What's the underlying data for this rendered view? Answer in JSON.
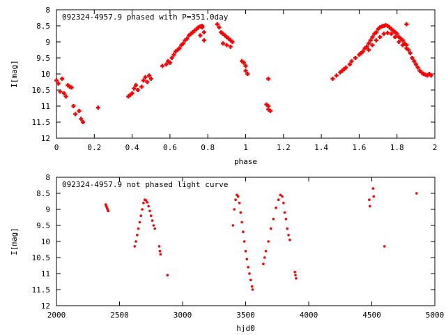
{
  "chart_data": [
    {
      "type": "scatter",
      "title": "092324-4957.9 phased with P=351.0day",
      "xlabel": "phase",
      "ylabel": "I[mag]",
      "xlim": [
        0,
        2
      ],
      "ylim": [
        8,
        12
      ],
      "y_inverted": true,
      "xticks": [
        "0",
        "0.2",
        "0.4",
        "0.6",
        "0.8",
        "1",
        "1.2",
        "1.4",
        "1.6",
        "1.8",
        "2"
      ],
      "yticks": [
        "8",
        "8.5",
        "9",
        "9.5",
        "10",
        "10.5",
        "11",
        "11.5",
        "12"
      ],
      "marker": "plus",
      "color": "#ff0000",
      "points": [
        [
          0.0,
          10.2
        ],
        [
          0.01,
          10.3
        ],
        [
          0.02,
          10.55
        ],
        [
          0.03,
          10.15
        ],
        [
          0.04,
          10.6
        ],
        [
          0.05,
          10.7
        ],
        [
          0.06,
          10.35
        ],
        [
          0.07,
          10.4
        ],
        [
          0.08,
          10.42
        ],
        [
          0.09,
          11.0
        ],
        [
          0.1,
          11.25
        ],
        [
          0.12,
          11.15
        ],
        [
          0.13,
          11.4
        ],
        [
          0.14,
          11.5
        ],
        [
          0.22,
          11.05
        ],
        [
          0.38,
          10.7
        ],
        [
          0.39,
          10.65
        ],
        [
          0.4,
          10.6
        ],
        [
          0.41,
          10.45
        ],
        [
          0.42,
          10.35
        ],
        [
          0.43,
          10.5
        ],
        [
          0.45,
          10.4
        ],
        [
          0.46,
          10.2
        ],
        [
          0.47,
          10.1
        ],
        [
          0.48,
          10.25
        ],
        [
          0.49,
          10.05
        ],
        [
          0.5,
          10.15
        ],
        [
          0.56,
          9.75
        ],
        [
          0.58,
          9.7
        ],
        [
          0.59,
          9.6
        ],
        [
          0.6,
          9.65
        ],
        [
          0.61,
          9.5
        ],
        [
          0.62,
          9.4
        ],
        [
          0.63,
          9.3
        ],
        [
          0.64,
          9.25
        ],
        [
          0.65,
          9.2
        ],
        [
          0.66,
          9.1
        ],
        [
          0.67,
          9.05
        ],
        [
          0.68,
          8.95
        ],
        [
          0.69,
          8.9
        ],
        [
          0.7,
          8.8
        ],
        [
          0.71,
          8.75
        ],
        [
          0.72,
          8.7
        ],
        [
          0.73,
          8.65
        ],
        [
          0.74,
          8.6
        ],
        [
          0.75,
          8.55
        ],
        [
          0.76,
          8.52
        ],
        [
          0.77,
          8.55
        ],
        [
          0.77,
          8.5
        ],
        [
          0.76,
          8.8
        ],
        [
          0.78,
          8.7
        ],
        [
          0.78,
          8.95
        ],
        [
          0.85,
          8.45
        ],
        [
          0.86,
          8.55
        ],
        [
          0.87,
          8.7
        ],
        [
          0.88,
          8.75
        ],
        [
          0.89,
          8.8
        ],
        [
          0.9,
          8.85
        ],
        [
          0.91,
          8.9
        ],
        [
          0.92,
          8.95
        ],
        [
          0.93,
          9.0
        ],
        [
          0.88,
          9.05
        ],
        [
          0.9,
          9.1
        ],
        [
          0.92,
          9.15
        ],
        [
          0.98,
          9.6
        ],
        [
          0.99,
          9.65
        ],
        [
          1.0,
          9.75
        ],
        [
          1.0,
          9.9
        ],
        [
          1.01,
          10.0
        ],
        [
          1.12,
          10.15
        ],
        [
          1.11,
          10.95
        ],
        [
          1.12,
          11.0
        ],
        [
          1.12,
          11.1
        ],
        [
          1.13,
          11.15
        ],
        [
          1.46,
          10.15
        ],
        [
          1.48,
          10.05
        ],
        [
          1.5,
          9.95
        ],
        [
          1.51,
          9.9
        ],
        [
          1.52,
          9.85
        ],
        [
          1.53,
          9.8
        ],
        [
          1.55,
          9.7
        ],
        [
          1.56,
          9.6
        ],
        [
          1.58,
          9.5
        ],
        [
          1.6,
          9.4
        ],
        [
          1.61,
          9.35
        ],
        [
          1.62,
          9.3
        ],
        [
          1.63,
          9.2
        ],
        [
          1.64,
          9.15
        ],
        [
          1.65,
          9.05
        ],
        [
          1.66,
          8.95
        ],
        [
          1.67,
          8.85
        ],
        [
          1.68,
          8.75
        ],
        [
          1.69,
          8.7
        ],
        [
          1.7,
          8.6
        ],
        [
          1.71,
          8.55
        ],
        [
          1.72,
          8.52
        ],
        [
          1.73,
          8.5
        ],
        [
          1.74,
          8.48
        ],
        [
          1.75,
          8.5
        ],
        [
          1.76,
          8.55
        ],
        [
          1.77,
          8.6
        ],
        [
          1.78,
          8.65
        ],
        [
          1.79,
          8.7
        ],
        [
          1.8,
          8.75
        ],
        [
          1.81,
          8.85
        ],
        [
          1.82,
          8.9
        ],
        [
          1.65,
          9.25
        ],
        [
          1.67,
          9.1
        ],
        [
          1.69,
          8.95
        ],
        [
          1.71,
          8.85
        ],
        [
          1.73,
          8.75
        ],
        [
          1.75,
          8.72
        ],
        [
          1.77,
          8.75
        ],
        [
          1.79,
          8.85
        ],
        [
          1.81,
          9.0
        ],
        [
          1.83,
          9.1
        ],
        [
          1.85,
          9.2
        ],
        [
          1.83,
          8.95
        ],
        [
          1.84,
          9.05
        ],
        [
          1.85,
          9.1
        ],
        [
          1.86,
          9.25
        ],
        [
          1.87,
          9.35
        ],
        [
          1.88,
          9.5
        ],
        [
          1.89,
          9.6
        ],
        [
          1.9,
          9.7
        ],
        [
          1.91,
          9.8
        ],
        [
          1.92,
          9.9
        ],
        [
          1.93,
          9.95
        ],
        [
          1.94,
          10.0
        ],
        [
          1.95,
          10.02
        ],
        [
          1.96,
          10.05
        ],
        [
          1.97,
          10.0
        ],
        [
          1.98,
          10.05
        ],
        [
          1.85,
          8.45
        ]
      ]
    },
    {
      "type": "scatter",
      "title": "092324-4957.9 not phased light curve",
      "xlabel": "hjd0",
      "ylabel": "I[mag]",
      "xlim": [
        2000,
        5000
      ],
      "ylim": [
        8,
        12
      ],
      "y_inverted": true,
      "xticks": [
        "2000",
        "2500",
        "3000",
        "3500",
        "4000",
        "4500",
        "5000"
      ],
      "yticks": [
        "8",
        "8.5",
        "9",
        "9.5",
        "10",
        "10.5",
        "11",
        "11.5",
        "12"
      ],
      "marker": "dot",
      "color": "#ff0000",
      "points": [
        [
          2390,
          8.85
        ],
        [
          2395,
          8.9
        ],
        [
          2400,
          8.95
        ],
        [
          2405,
          9.0
        ],
        [
          2410,
          9.05
        ],
        [
          2620,
          10.15
        ],
        [
          2630,
          10.0
        ],
        [
          2640,
          9.8
        ],
        [
          2650,
          9.6
        ],
        [
          2660,
          9.4
        ],
        [
          2670,
          9.2
        ],
        [
          2680,
          9.0
        ],
        [
          2690,
          8.8
        ],
        [
          2700,
          8.7
        ],
        [
          2710,
          8.72
        ],
        [
          2720,
          8.78
        ],
        [
          2730,
          8.9
        ],
        [
          2740,
          9.05
        ],
        [
          2750,
          9.2
        ],
        [
          2760,
          9.35
        ],
        [
          2770,
          9.5
        ],
        [
          2780,
          9.6
        ],
        [
          2815,
          10.15
        ],
        [
          2820,
          10.3
        ],
        [
          2825,
          10.4
        ],
        [
          2880,
          11.05
        ],
        [
          3400,
          9.5
        ],
        [
          3410,
          9.0
        ],
        [
          3420,
          8.7
        ],
        [
          3430,
          8.55
        ],
        [
          3440,
          8.6
        ],
        [
          3450,
          8.8
        ],
        [
          3460,
          9.1
        ],
        [
          3470,
          9.4
        ],
        [
          3480,
          9.7
        ],
        [
          3490,
          10.0
        ],
        [
          3500,
          10.3
        ],
        [
          3510,
          10.55
        ],
        [
          3520,
          10.8
        ],
        [
          3530,
          11.0
        ],
        [
          3540,
          11.2
        ],
        [
          3550,
          11.4
        ],
        [
          3555,
          11.5
        ],
        [
          3640,
          10.7
        ],
        [
          3650,
          10.5
        ],
        [
          3660,
          10.3
        ],
        [
          3680,
          10.0
        ],
        [
          3700,
          9.6
        ],
        [
          3720,
          9.3
        ],
        [
          3740,
          8.95
        ],
        [
          3760,
          8.7
        ],
        [
          3775,
          8.55
        ],
        [
          3790,
          8.6
        ],
        [
          3800,
          8.8
        ],
        [
          3810,
          9.1
        ],
        [
          3820,
          9.3
        ],
        [
          3830,
          9.6
        ],
        [
          3840,
          9.8
        ],
        [
          3850,
          9.95
        ],
        [
          3890,
          10.95
        ],
        [
          3895,
          11.05
        ],
        [
          3900,
          11.15
        ],
        [
          4480,
          8.7
        ],
        [
          4485,
          8.9
        ],
        [
          4510,
          8.35
        ],
        [
          4515,
          8.6
        ],
        [
          4600,
          10.15
        ],
        [
          4855,
          8.5
        ]
      ]
    }
  ]
}
